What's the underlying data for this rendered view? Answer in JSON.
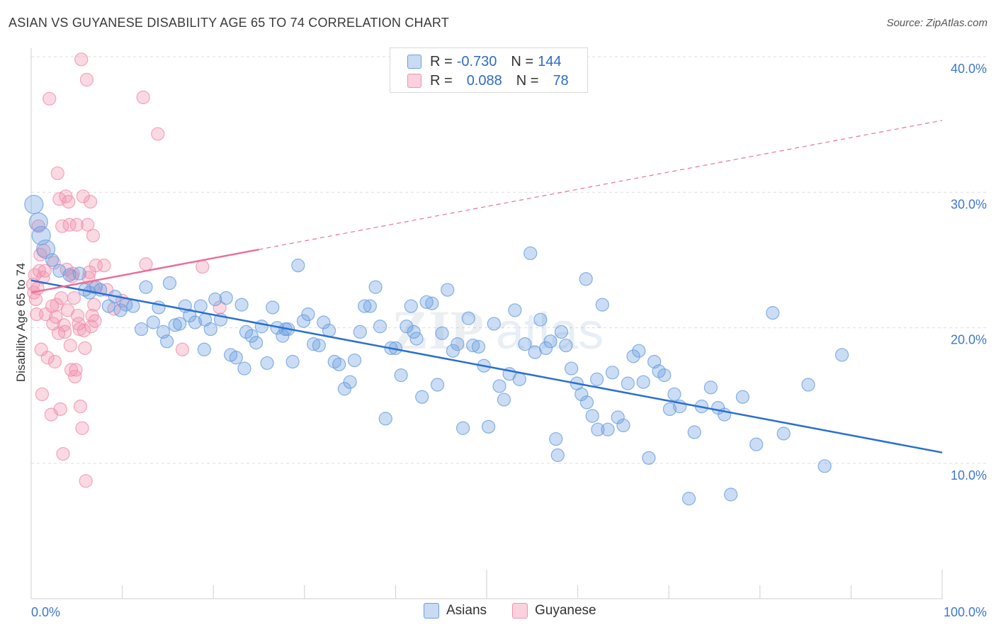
{
  "title": "ASIAN VS GUYANESE DISABILITY AGE 65 TO 74 CORRELATION CHART",
  "source": "Source: ZipAtlas.com",
  "watermark": {
    "zip": "ZIP",
    "atlas": "atlas"
  },
  "legend_top": {
    "rows": [
      {
        "r_label": "R =",
        "r_value": "-0.730",
        "n_label": "N =",
        "n_value": "144",
        "color": "#a9c8ee"
      },
      {
        "r_label": "R =",
        "r_value": "0.088",
        "n_label": "N =",
        "n_value": "78",
        "color": "#f7b8cb"
      }
    ]
  },
  "chart_data": {
    "type": "scatter",
    "title": "ASIAN VS GUYANESE DISABILITY AGE 65 TO 74 CORRELATION CHART",
    "ylabel": "Disability Age 65 to 74",
    "xlim": [
      0,
      100
    ],
    "ylim": [
      0,
      42
    ],
    "x_tick_labels": [
      "0.0%",
      "100.0%"
    ],
    "y_ticks": [
      10,
      20,
      30,
      40
    ],
    "y_tick_labels": [
      "10.0%",
      "20.0%",
      "30.0%",
      "40.0%"
    ],
    "grid": true,
    "legend_position": "bottom",
    "colors": {
      "asians": "#6a9fe0",
      "guyanese": "#f091ae",
      "asians_line": "#2a6fd1",
      "guyanese_line": "#e8709a"
    },
    "series": [
      {
        "name": "Asians",
        "trend": {
          "x0": 0,
          "y0": 23.5,
          "x1": 100,
          "y1": 10.8,
          "style": "solid"
        },
        "points": [
          [
            0.3,
            29.1
          ],
          [
            0.8,
            27.8
          ],
          [
            1.1,
            26.8
          ],
          [
            1.6,
            25.8
          ],
          [
            2.3,
            25.0
          ],
          [
            3.1,
            24.2
          ],
          [
            4.2,
            23.9
          ],
          [
            5.3,
            24.0
          ],
          [
            5.9,
            22.8
          ],
          [
            6.4,
            22.6
          ],
          [
            7.1,
            23.0
          ],
          [
            7.6,
            22.8
          ],
          [
            8.5,
            21.6
          ],
          [
            9.2,
            22.3
          ],
          [
            9.8,
            21.3
          ],
          [
            10.4,
            21.7
          ],
          [
            11.2,
            21.6
          ],
          [
            12.1,
            19.9
          ],
          [
            12.6,
            23.0
          ],
          [
            13.4,
            20.4
          ],
          [
            14.0,
            21.5
          ],
          [
            14.5,
            19.7
          ],
          [
            15.2,
            23.3
          ],
          [
            15.8,
            20.2
          ],
          [
            16.3,
            20.3
          ],
          [
            16.9,
            21.6
          ],
          [
            17.4,
            20.9
          ],
          [
            18.0,
            20.4
          ],
          [
            18.6,
            21.6
          ],
          [
            19.1,
            20.6
          ],
          [
            19.7,
            19.9
          ],
          [
            20.2,
            22.1
          ],
          [
            20.8,
            20.6
          ],
          [
            21.4,
            22.2
          ],
          [
            21.9,
            18.0
          ],
          [
            22.5,
            17.8
          ],
          [
            23.1,
            21.7
          ],
          [
            23.6,
            19.7
          ],
          [
            24.2,
            19.4
          ],
          [
            24.7,
            18.9
          ],
          [
            25.3,
            20.1
          ],
          [
            25.9,
            17.4
          ],
          [
            26.5,
            21.5
          ],
          [
            27.0,
            20.0
          ],
          [
            27.6,
            19.4
          ],
          [
            28.2,
            19.9
          ],
          [
            28.7,
            17.5
          ],
          [
            29.3,
            24.6
          ],
          [
            29.9,
            20.5
          ],
          [
            30.4,
            21.0
          ],
          [
            31.0,
            18.8
          ],
          [
            31.6,
            18.7
          ],
          [
            32.1,
            20.4
          ],
          [
            32.7,
            19.8
          ],
          [
            33.3,
            17.5
          ],
          [
            33.8,
            17.3
          ],
          [
            34.4,
            15.5
          ],
          [
            35.0,
            16.0
          ],
          [
            35.5,
            17.6
          ],
          [
            36.1,
            19.7
          ],
          [
            36.6,
            21.6
          ],
          [
            37.2,
            21.6
          ],
          [
            37.8,
            23.0
          ],
          [
            38.3,
            20.1
          ],
          [
            38.9,
            13.3
          ],
          [
            39.5,
            18.5
          ],
          [
            40.0,
            18.5
          ],
          [
            40.6,
            16.5
          ],
          [
            41.2,
            20.1
          ],
          [
            41.7,
            21.6
          ],
          [
            42.3,
            19.2
          ],
          [
            42.9,
            14.9
          ],
          [
            43.4,
            21.9
          ],
          [
            44.0,
            21.8
          ],
          [
            44.6,
            15.8
          ],
          [
            45.1,
            19.6
          ],
          [
            45.7,
            22.8
          ],
          [
            46.3,
            18.3
          ],
          [
            46.8,
            18.8
          ],
          [
            47.4,
            12.6
          ],
          [
            48.0,
            20.7
          ],
          [
            48.5,
            18.7
          ],
          [
            49.1,
            18.6
          ],
          [
            49.7,
            17.2
          ],
          [
            50.2,
            12.7
          ],
          [
            50.8,
            20.3
          ],
          [
            51.4,
            15.7
          ],
          [
            51.9,
            14.7
          ],
          [
            52.5,
            16.6
          ],
          [
            53.1,
            21.3
          ],
          [
            53.6,
            16.2
          ],
          [
            54.2,
            18.8
          ],
          [
            54.8,
            25.5
          ],
          [
            55.3,
            18.2
          ],
          [
            55.9,
            20.6
          ],
          [
            56.5,
            18.5
          ],
          [
            57.0,
            19.0
          ],
          [
            57.6,
            11.8
          ],
          [
            58.2,
            19.7
          ],
          [
            58.7,
            18.7
          ],
          [
            59.3,
            17.0
          ],
          [
            59.9,
            15.9
          ],
          [
            60.4,
            15.1
          ],
          [
            61.0,
            14.5
          ],
          [
            61.6,
            13.5
          ],
          [
            62.1,
            16.2
          ],
          [
            62.7,
            21.7
          ],
          [
            63.3,
            12.5
          ],
          [
            63.8,
            16.7
          ],
          [
            64.4,
            13.4
          ],
          [
            65.0,
            12.8
          ],
          [
            65.5,
            15.9
          ],
          [
            66.1,
            17.9
          ],
          [
            66.7,
            18.3
          ],
          [
            67.2,
            16.0
          ],
          [
            67.8,
            10.4
          ],
          [
            68.4,
            17.5
          ],
          [
            68.9,
            16.8
          ],
          [
            69.5,
            16.5
          ],
          [
            70.1,
            14.0
          ],
          [
            70.6,
            15.1
          ],
          [
            71.2,
            14.2
          ],
          [
            72.2,
            7.4
          ],
          [
            72.8,
            12.3
          ],
          [
            73.6,
            14.2
          ],
          [
            74.6,
            15.6
          ],
          [
            75.4,
            14.1
          ],
          [
            76.1,
            13.6
          ],
          [
            76.8,
            7.7
          ],
          [
            78.1,
            14.9
          ],
          [
            79.6,
            11.4
          ],
          [
            81.4,
            21.1
          ],
          [
            82.6,
            12.2
          ],
          [
            85.3,
            15.8
          ],
          [
            87.1,
            9.8
          ],
          [
            89.0,
            18.0
          ],
          [
            60.9,
            23.6
          ],
          [
            62.2,
            12.5
          ],
          [
            57.8,
            10.6
          ],
          [
            42.0,
            19.7
          ],
          [
            27.9,
            19.9
          ],
          [
            23.4,
            17.0
          ],
          [
            19.0,
            18.4
          ],
          [
            14.9,
            19.0
          ]
        ]
      },
      {
        "name": "Guyanese",
        "trend": {
          "x0": 0,
          "y0": 22.6,
          "x1": 100,
          "y1": 35.3,
          "solid_until_x": 25,
          "style": "solid-then-dashed"
        },
        "points": [
          [
            0.2,
            23.2
          ],
          [
            0.3,
            22.6
          ],
          [
            0.4,
            23.9
          ],
          [
            0.5,
            22.1
          ],
          [
            0.6,
            21.0
          ],
          [
            0.7,
            22.9
          ],
          [
            0.8,
            27.5
          ],
          [
            0.9,
            24.2
          ],
          [
            1.0,
            25.4
          ],
          [
            1.1,
            18.4
          ],
          [
            1.2,
            15.1
          ],
          [
            1.3,
            23.7
          ],
          [
            1.4,
            25.7
          ],
          [
            1.5,
            24.2
          ],
          [
            1.6,
            21.0
          ],
          [
            1.8,
            17.8
          ],
          [
            2.0,
            36.9
          ],
          [
            2.2,
            13.6
          ],
          [
            2.3,
            21.6
          ],
          [
            2.4,
            20.3
          ],
          [
            2.5,
            24.8
          ],
          [
            2.6,
            17.5
          ],
          [
            2.7,
            20.8
          ],
          [
            2.8,
            21.7
          ],
          [
            2.9,
            31.4
          ],
          [
            3.0,
            19.6
          ],
          [
            3.1,
            29.5
          ],
          [
            3.2,
            14.0
          ],
          [
            3.3,
            22.2
          ],
          [
            3.4,
            27.5
          ],
          [
            3.5,
            10.7
          ],
          [
            3.6,
            20.2
          ],
          [
            3.7,
            19.7
          ],
          [
            3.8,
            29.7
          ],
          [
            3.9,
            24.3
          ],
          [
            4.0,
            21.3
          ],
          [
            4.1,
            29.3
          ],
          [
            4.2,
            27.6
          ],
          [
            4.3,
            18.7
          ],
          [
            4.4,
            16.9
          ],
          [
            4.5,
            23.8
          ],
          [
            4.6,
            24.0
          ],
          [
            4.7,
            22.2
          ],
          [
            4.8,
            16.4
          ],
          [
            4.9,
            16.9
          ],
          [
            5.0,
            27.6
          ],
          [
            5.1,
            20.9
          ],
          [
            5.2,
            20.3
          ],
          [
            5.3,
            19.9
          ],
          [
            5.4,
            14.2
          ],
          [
            5.5,
            39.8
          ],
          [
            5.6,
            12.6
          ],
          [
            5.7,
            29.7
          ],
          [
            5.8,
            19.8
          ],
          [
            5.9,
            18.5
          ],
          [
            6.0,
            8.7
          ],
          [
            6.1,
            38.3
          ],
          [
            6.2,
            27.6
          ],
          [
            6.3,
            23.7
          ],
          [
            6.4,
            24.1
          ],
          [
            6.5,
            29.3
          ],
          [
            6.6,
            20.1
          ],
          [
            6.7,
            20.9
          ],
          [
            6.8,
            23.0
          ],
          [
            6.9,
            21.7
          ],
          [
            7.0,
            20.5
          ],
          [
            7.1,
            24.6
          ],
          [
            8.0,
            24.6
          ],
          [
            8.3,
            22.8
          ],
          [
            9.1,
            21.4
          ],
          [
            10.0,
            22.0
          ],
          [
            12.3,
            37.0
          ],
          [
            12.6,
            24.7
          ],
          [
            13.9,
            34.3
          ],
          [
            16.6,
            18.4
          ],
          [
            18.8,
            24.5
          ],
          [
            20.7,
            21.5
          ],
          [
            6.8,
            26.8
          ]
        ]
      }
    ]
  },
  "bottom_legend": [
    {
      "label": "Asians",
      "color": "#a9c8ee"
    },
    {
      "label": "Guyanese",
      "color": "#f7b8cb"
    }
  ]
}
